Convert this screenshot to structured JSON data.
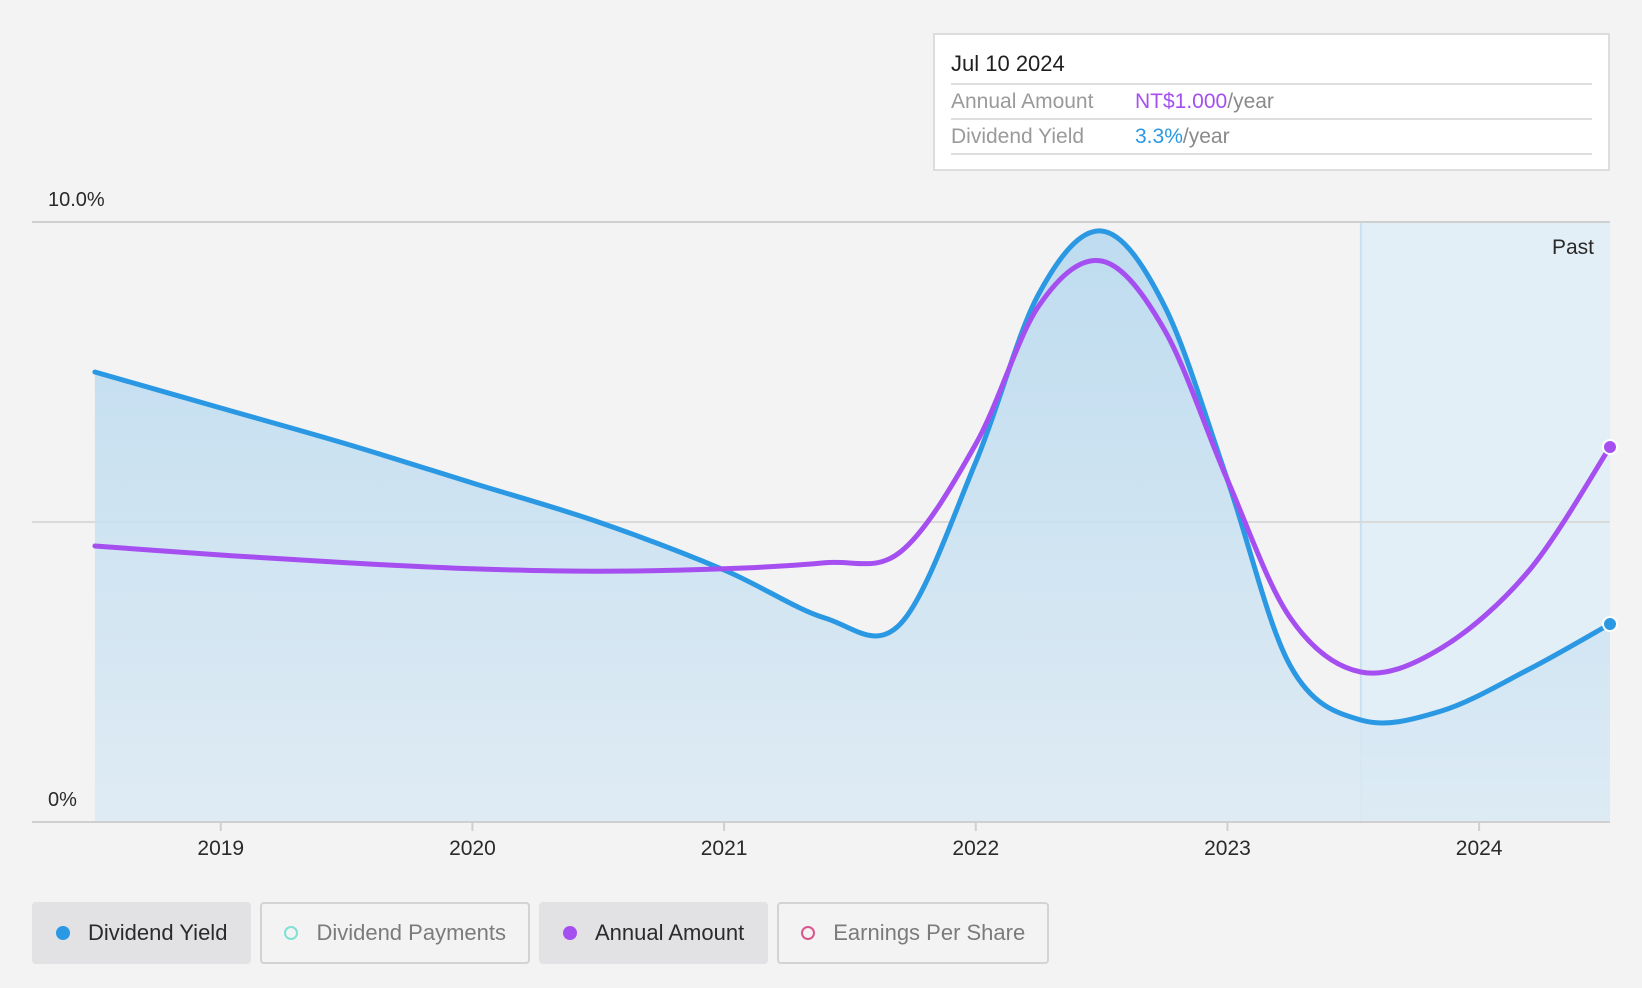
{
  "tooltip": {
    "date": "Jul 10 2024",
    "rows": [
      {
        "label": "Annual Amount",
        "value": "NT$1.000",
        "unit": "/year"
      },
      {
        "label": "Dividend Yield",
        "value": "3.3%",
        "unit": "/year"
      }
    ]
  },
  "legend": [
    {
      "label": "Dividend Yield",
      "active": true,
      "color": "#2b98e3",
      "filled": true
    },
    {
      "label": "Dividend Payments",
      "active": false,
      "color": "#7fe0d4",
      "filled": false
    },
    {
      "label": "Annual Amount",
      "active": true,
      "color": "#a64ff0",
      "filled": true
    },
    {
      "label": "Earnings Per Share",
      "active": false,
      "color": "#d9558e",
      "filled": false
    }
  ],
  "chart_data": {
    "type": "line",
    "y_tick_labels": [
      "10.0%",
      "0%"
    ],
    "ylim": [
      0,
      10
    ],
    "x_ticks": [
      2019,
      2020,
      2021,
      2022,
      2023,
      2024
    ],
    "xlim": [
      2018.25,
      2024.52
    ],
    "past_label": "Past",
    "past_start": 2023.53,
    "series": [
      {
        "name": "Dividend Yield",
        "color": "#2b98e3",
        "area": true,
        "points": [
          [
            2018.5,
            7.5
          ],
          [
            2019.0,
            6.9
          ],
          [
            2019.5,
            6.3
          ],
          [
            2020.0,
            5.65
          ],
          [
            2020.5,
            5.0
          ],
          [
            2021.0,
            4.2
          ],
          [
            2021.4,
            3.4
          ],
          [
            2021.7,
            3.3
          ],
          [
            2022.0,
            6.0
          ],
          [
            2022.25,
            8.8
          ],
          [
            2022.5,
            9.85
          ],
          [
            2022.75,
            8.6
          ],
          [
            2023.0,
            5.7
          ],
          [
            2023.25,
            2.6
          ],
          [
            2023.53,
            1.7
          ],
          [
            2023.85,
            1.85
          ],
          [
            2024.2,
            2.55
          ],
          [
            2024.52,
            3.3
          ]
        ]
      },
      {
        "name": "Annual Amount",
        "color": "#a64ff0",
        "area": false,
        "points": [
          [
            2018.5,
            4.6
          ],
          [
            2019.0,
            4.45
          ],
          [
            2019.5,
            4.32
          ],
          [
            2020.0,
            4.22
          ],
          [
            2020.5,
            4.18
          ],
          [
            2021.0,
            4.22
          ],
          [
            2021.4,
            4.32
          ],
          [
            2021.7,
            4.5
          ],
          [
            2022.0,
            6.3
          ],
          [
            2022.25,
            8.6
          ],
          [
            2022.5,
            9.35
          ],
          [
            2022.75,
            8.2
          ],
          [
            2023.0,
            5.7
          ],
          [
            2023.25,
            3.4
          ],
          [
            2023.53,
            2.5
          ],
          [
            2023.85,
            2.9
          ],
          [
            2024.2,
            4.2
          ],
          [
            2024.52,
            6.25
          ]
        ]
      }
    ],
    "grid": true
  }
}
